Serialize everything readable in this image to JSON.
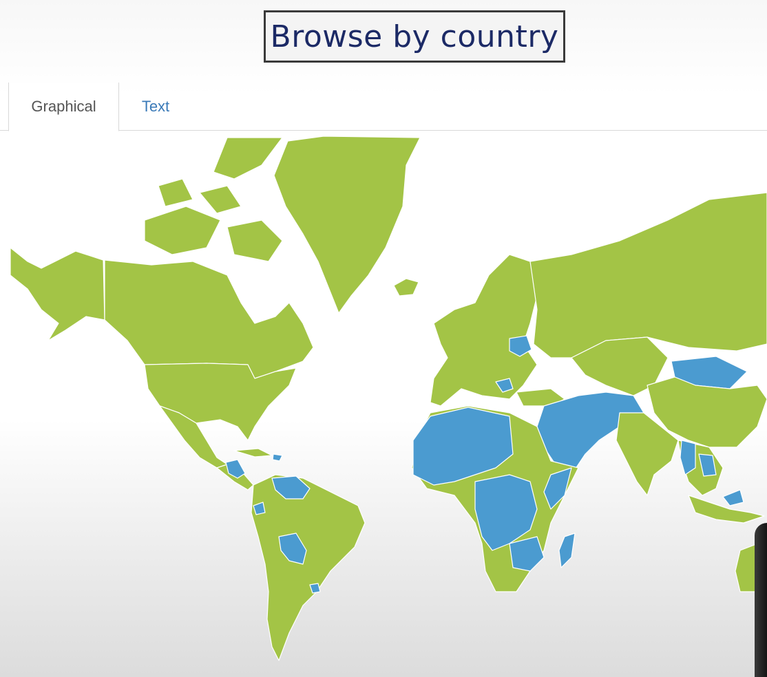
{
  "header": {
    "title": "Browse by country"
  },
  "tabs": [
    {
      "label": "Graphical",
      "active": true
    },
    {
      "label": "Text",
      "active": false
    }
  ],
  "map": {
    "colors": {
      "land": "#a3c446",
      "highlighted": "#4b9bd0",
      "border": "#ffffff",
      "water": "#ffffff"
    }
  }
}
